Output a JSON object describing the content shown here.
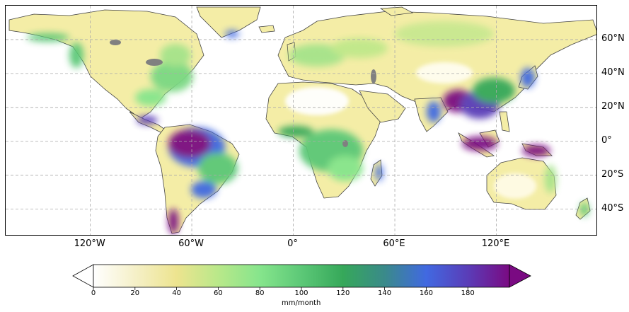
{
  "map": {
    "lon_ticks": [
      {
        "lon": -120,
        "label": "120°W"
      },
      {
        "lon": -60,
        "label": "60°W"
      },
      {
        "lon": 0,
        "label": "0°"
      },
      {
        "lon": 60,
        "label": "60°E"
      },
      {
        "lon": 120,
        "label": "120°E"
      }
    ],
    "lat_ticks": [
      {
        "lat": 60,
        "label": "60°N"
      },
      {
        "lat": 40,
        "label": "40°N"
      },
      {
        "lat": 20,
        "label": "20°N"
      },
      {
        "lat": 0,
        "label": "0°"
      },
      {
        "lat": -20,
        "label": "20°S"
      },
      {
        "lat": -40,
        "label": "40°S"
      }
    ],
    "extent": {
      "lon": [
        -170,
        180
      ],
      "lat": [
        -56,
        80
      ]
    },
    "gridlines": true,
    "ocean_color": "#ffffff",
    "coastline_color": "#444444",
    "lake_color": "#808080"
  },
  "colorbar": {
    "label": "mm/month",
    "min": 0,
    "max": 200,
    "ticks": [
      "0",
      "20",
      "40",
      "60",
      "80",
      "100",
      "120",
      "140",
      "160",
      "180"
    ],
    "extend": "both",
    "colors": [
      "#ffffff",
      "#f5f0c8",
      "#ede48f",
      "#b9e88a",
      "#86e58c",
      "#5cc877",
      "#36a85a",
      "#3a8a8a",
      "#4169e1",
      "#5a3db8",
      "#7a0a82"
    ]
  }
}
